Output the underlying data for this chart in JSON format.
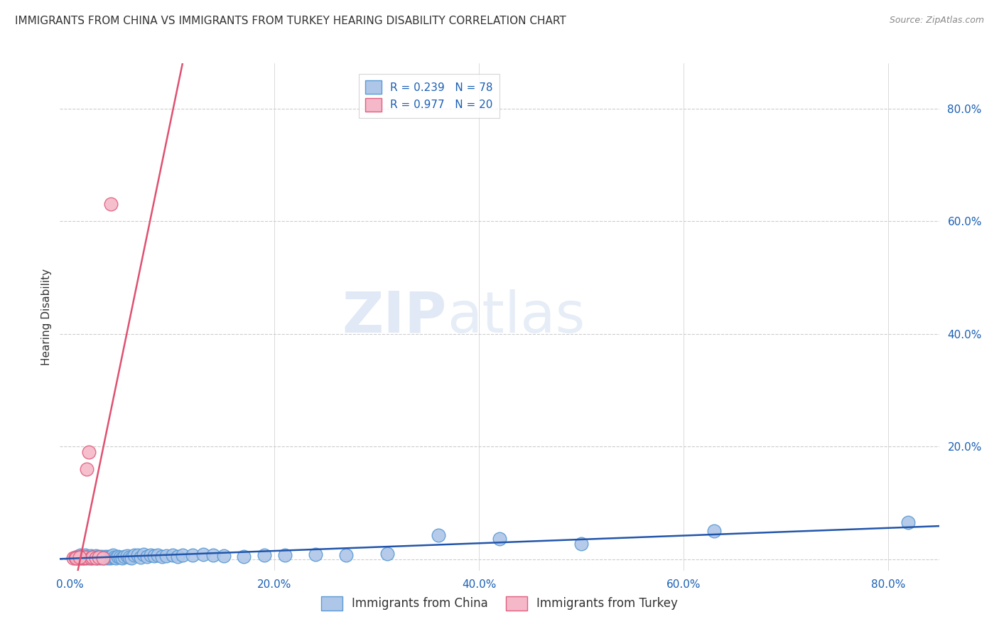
{
  "title": "IMMIGRANTS FROM CHINA VS IMMIGRANTS FROM TURKEY HEARING DISABILITY CORRELATION CHART",
  "source": "Source: ZipAtlas.com",
  "ylabel": "Hearing Disability",
  "china_color": "#aec6e8",
  "china_edge_color": "#5b9bd5",
  "turkey_color": "#f4b8c8",
  "turkey_edge_color": "#e06080",
  "china_line_color": "#2255aa",
  "turkey_line_color": "#e05070",
  "china_R": 0.239,
  "china_N": 78,
  "turkey_R": 0.977,
  "turkey_N": 20,
  "legend_label_china": "Immigrants from China",
  "legend_label_turkey": "Immigrants from Turkey",
  "watermark_zip": "ZIP",
  "watermark_atlas": "atlas",
  "grid_color": "#cccccc",
  "background_color": "#ffffff",
  "title_color": "#333333",
  "axis_label_color": "#1a5fb4",
  "china_scatter_x": [
    0.005,
    0.007,
    0.008,
    0.009,
    0.01,
    0.01,
    0.011,
    0.012,
    0.013,
    0.014,
    0.015,
    0.015,
    0.016,
    0.017,
    0.018,
    0.019,
    0.02,
    0.02,
    0.021,
    0.022,
    0.023,
    0.024,
    0.025,
    0.025,
    0.026,
    0.027,
    0.028,
    0.029,
    0.03,
    0.031,
    0.032,
    0.033,
    0.034,
    0.035,
    0.036,
    0.037,
    0.038,
    0.039,
    0.04,
    0.041,
    0.042,
    0.043,
    0.045,
    0.047,
    0.049,
    0.051,
    0.053,
    0.056,
    0.058,
    0.06,
    0.063,
    0.066,
    0.069,
    0.072,
    0.075,
    0.079,
    0.082,
    0.086,
    0.09,
    0.094,
    0.1,
    0.105,
    0.11,
    0.12,
    0.13,
    0.14,
    0.15,
    0.17,
    0.19,
    0.21,
    0.24,
    0.27,
    0.31,
    0.36,
    0.42,
    0.5,
    0.63,
    0.82
  ],
  "china_scatter_y": [
    0.003,
    0.005,
    0.004,
    0.003,
    0.005,
    0.008,
    0.004,
    0.006,
    0.003,
    0.005,
    0.004,
    0.007,
    0.003,
    0.005,
    0.004,
    0.003,
    0.005,
    0.006,
    0.004,
    0.003,
    0.005,
    0.004,
    0.003,
    0.006,
    0.004,
    0.003,
    0.005,
    0.004,
    0.003,
    0.005,
    0.004,
    0.003,
    0.005,
    0.004,
    0.003,
    0.005,
    0.004,
    0.003,
    0.005,
    0.004,
    0.007,
    0.004,
    0.003,
    0.005,
    0.004,
    0.003,
    0.005,
    0.006,
    0.004,
    0.003,
    0.008,
    0.007,
    0.004,
    0.009,
    0.005,
    0.007,
    0.006,
    0.008,
    0.005,
    0.006,
    0.007,
    0.005,
    0.008,
    0.007,
    0.009,
    0.007,
    0.006,
    0.005,
    0.007,
    0.008,
    0.009,
    0.008,
    0.01,
    0.043,
    0.037,
    0.028,
    0.05,
    0.065
  ],
  "turkey_scatter_x": [
    0.003,
    0.005,
    0.007,
    0.008,
    0.01,
    0.011,
    0.012,
    0.013,
    0.014,
    0.015,
    0.016,
    0.018,
    0.02,
    0.022,
    0.025,
    0.028,
    0.032,
    0.04,
    0.006,
    0.009
  ],
  "turkey_scatter_y": [
    0.003,
    0.004,
    0.003,
    0.004,
    0.003,
    0.004,
    0.003,
    0.004,
    0.003,
    0.004,
    0.16,
    0.19,
    0.003,
    0.004,
    0.003,
    0.004,
    0.003,
    0.63,
    0.003,
    0.004
  ]
}
